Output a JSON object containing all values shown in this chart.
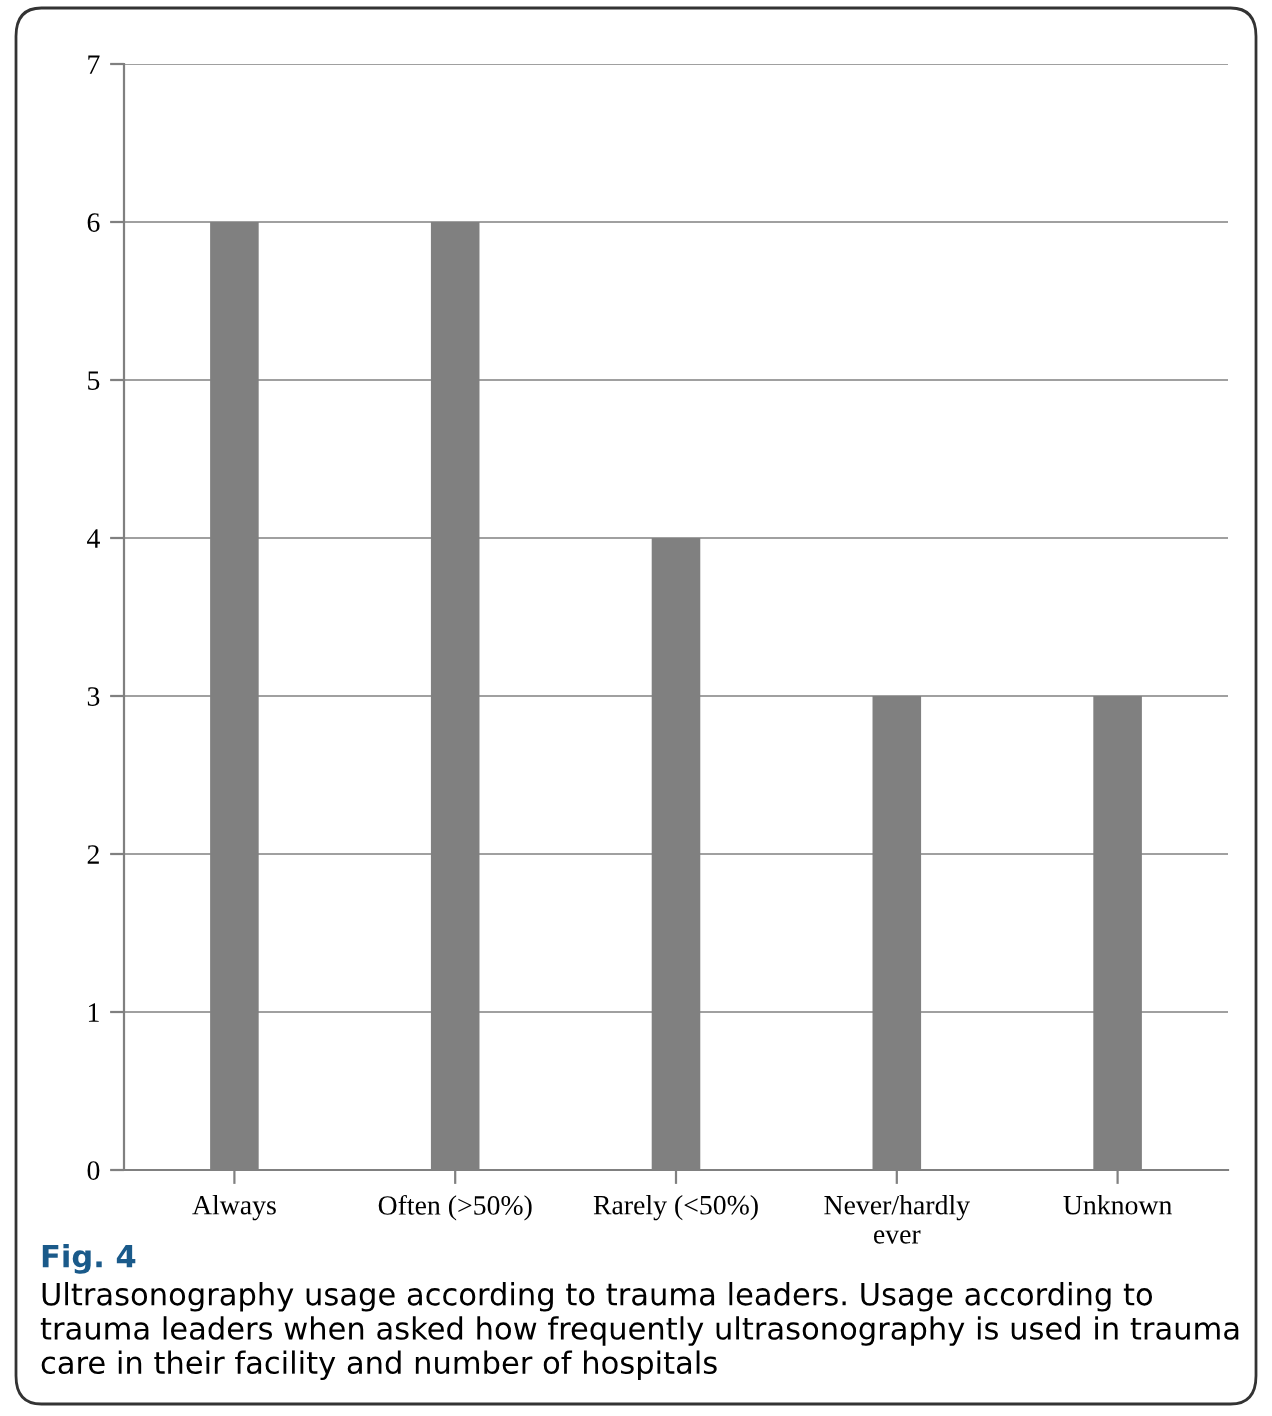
{
  "chart_data": {
    "type": "bar",
    "categories": [
      "Always",
      "Often (>50%)",
      "Rarely (<50%)",
      "Never/hardly ever",
      "Unknown"
    ],
    "values": [
      6,
      6,
      4,
      3,
      3
    ],
    "color": "#808080",
    "ylim": [
      0,
      7
    ],
    "yticks": [
      0,
      1,
      2,
      3,
      4,
      5,
      6,
      7
    ],
    "grid": "y",
    "annotations": [
      "Fig. 4",
      "Ultrasonography usage according to trauma leaders. Usage according to trauma leaders when asked how frequently ultrasonography is used in trauma care in their facility and number of hospitals"
    ]
  }
}
